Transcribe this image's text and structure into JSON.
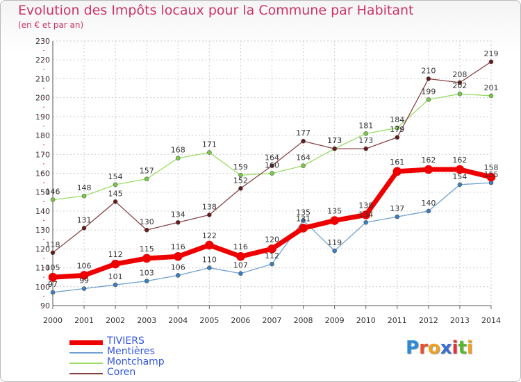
{
  "header": {
    "title": "Evolution des Impôts locaux pour la Commune par Habitant",
    "subtitle": "(en € et par an)"
  },
  "logo": {
    "text": "Proxiti",
    "letter_colors": [
      "#2a8ad8",
      "#e8522a",
      "#f0a020",
      "#3a6fd0",
      "#e0303a",
      "#58b82e",
      "#f0a020"
    ]
  },
  "chart_data": {
    "type": "line",
    "x": [
      2000,
      2001,
      2002,
      2003,
      2004,
      2005,
      2006,
      2007,
      2008,
      2009,
      2010,
      2011,
      2012,
      2013,
      2014
    ],
    "ylim": [
      90,
      230
    ],
    "yticks": [
      90,
      100,
      110,
      120,
      130,
      140,
      150,
      160,
      170,
      180,
      190,
      200,
      210,
      220,
      230
    ],
    "grid": true,
    "legend_position": "bottom-left",
    "series": [
      {
        "name": "Mentières",
        "color": "#6fa0d0",
        "marker_color": "#3a7fc0",
        "width": 1.3,
        "marker_r": 3,
        "values": [
          97,
          99,
          101,
          103,
          106,
          110,
          107,
          112,
          135,
          119,
          134,
          137,
          140,
          154,
          155
        ]
      },
      {
        "name": "Montchamp",
        "color": "#99dd66",
        "marker_color": "#77cc44",
        "width": 1.3,
        "marker_r": 3,
        "values": [
          146,
          148,
          154,
          157,
          168,
          171,
          159,
          160,
          164,
          173,
          181,
          184,
          199,
          202,
          201
        ]
      },
      {
        "name": "Coren",
        "color": "#884444",
        "marker_color": "#661a1a",
        "width": 1.3,
        "marker_r": 3,
        "values": [
          118,
          131,
          145,
          130,
          134,
          138,
          152,
          164,
          177,
          173,
          173,
          179,
          210,
          208,
          219
        ]
      },
      {
        "name": "TIVIERS",
        "color": "#ee0000",
        "marker_color": "#ee0000",
        "width": 7,
        "marker_r": 6,
        "values": [
          105,
          106,
          112,
          115,
          116,
          122,
          116,
          120,
          131,
          135,
          138,
          161,
          162,
          162,
          158
        ]
      }
    ],
    "legend": [
      {
        "name": "TIVIERS",
        "color": "#ee0000",
        "width": 7
      },
      {
        "name": "Mentières",
        "color": "#6fa0d0",
        "width": 2
      },
      {
        "name": "Montchamp",
        "color": "#99dd66",
        "width": 2
      },
      {
        "name": "Coren",
        "color": "#884444",
        "width": 2
      }
    ]
  }
}
